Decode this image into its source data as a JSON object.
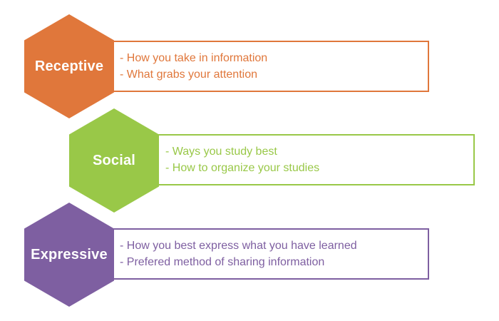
{
  "colors": {
    "receptive": "#E0773B",
    "social": "#99C848",
    "expressive": "#7E5FA1"
  },
  "items": [
    {
      "key": "receptive",
      "title": "Receptive",
      "bullets": [
        "- How you take in information",
        "- What grabs your attention"
      ]
    },
    {
      "key": "social",
      "title": "Social",
      "bullets": [
        "- Ways you study best",
        "- How to organize your studies"
      ]
    },
    {
      "key": "expressive",
      "title": "Expressive",
      "bullets": [
        "- How you best express what you have learned",
        "- Prefered method of sharing information"
      ]
    }
  ]
}
